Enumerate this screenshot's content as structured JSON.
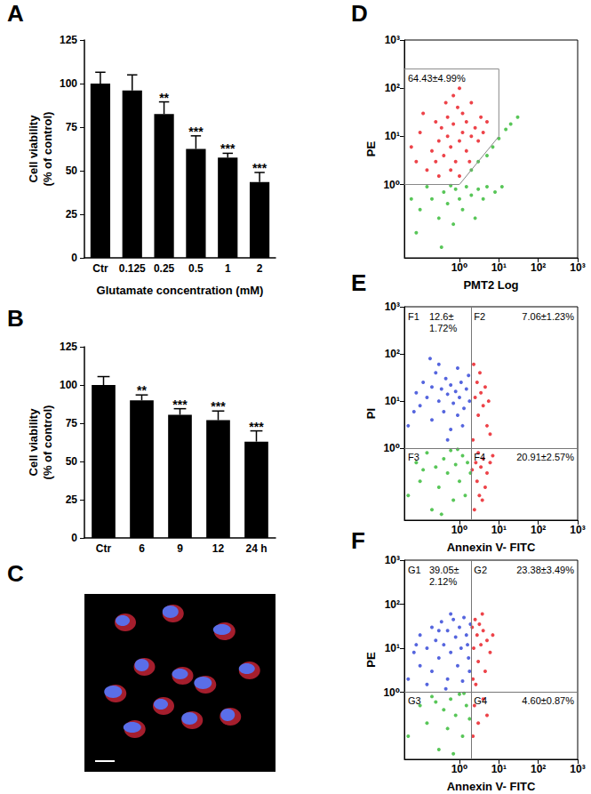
{
  "chart_data": [
    {
      "type": "bar",
      "panel": "A",
      "categories": [
        "Ctr",
        "0.125",
        "0.25",
        "0.5",
        "1",
        "2"
      ],
      "values": [
        100,
        96,
        82.5,
        62.5,
        57.5,
        43.5
      ],
      "errors": [
        6.5,
        9,
        7,
        7.5,
        2.5,
        5.5
      ],
      "annotations": [
        null,
        null,
        "**",
        "***",
        "***",
        "***"
      ],
      "x_label": "Glutamate concentration (mM)",
      "y_label": "Cell viability\n(% of control)",
      "color": "#000000",
      "ylim": [
        0,
        125
      ],
      "yticks": [
        0,
        25,
        50,
        75,
        100,
        125
      ],
      "grid": false
    },
    {
      "type": "bar",
      "panel": "B",
      "categories": [
        "Ctr",
        "6",
        "9",
        "12",
        "24 h"
      ],
      "values": [
        100,
        90,
        80.5,
        77,
        63
      ],
      "errors": [
        5.5,
        3.5,
        4,
        6,
        7
      ],
      "annotations": [
        null,
        "**",
        "***",
        "***",
        "***"
      ],
      "y_label": "Cell viability\n(% of control)",
      "color": "#000000",
      "ylim": [
        0,
        125
      ],
      "yticks": [
        0,
        25,
        50,
        75,
        100,
        125
      ],
      "grid": false
    },
    {
      "type": "image",
      "panel": "C"
    },
    {
      "type": "scatter",
      "panel": "D",
      "log": true,
      "x_label": "PMT2 Log",
      "y_label": "PE",
      "xlim": [
        0.04,
        1000
      ],
      "ylim": [
        0.03,
        1000
      ],
      "xticks": [
        {
          "value": 1,
          "label": "10⁰"
        },
        {
          "value": 10,
          "label": "10¹"
        },
        {
          "value": 100,
          "label": "10²"
        },
        {
          "value": 1000,
          "label": "10³"
        }
      ],
      "yticks": [
        {
          "value": 1,
          "label": "10⁰"
        },
        {
          "value": 10,
          "label": "10¹"
        },
        {
          "value": 100,
          "label": "10²"
        },
        {
          "value": 1000,
          "label": "10³"
        }
      ],
      "gate": {
        "label": "64.43±4.99%",
        "polygon": [
          [
            0.04,
            1
          ],
          [
            0.04,
            250
          ],
          [
            10,
            250
          ],
          [
            10,
            10
          ],
          [
            1,
            1
          ]
        ]
      },
      "series": [
        {
          "color": "#e8141c",
          "values": [
            [
              0.15,
              2
            ],
            [
              0.2,
              5
            ],
            [
              0.25,
              3
            ],
            [
              0.3,
              8
            ],
            [
              0.35,
              15
            ],
            [
              0.4,
              4
            ],
            [
              0.5,
              10
            ],
            [
              0.5,
              25
            ],
            [
              0.6,
              6
            ],
            [
              0.7,
              18
            ],
            [
              0.8,
              3
            ],
            [
              0.9,
              40
            ],
            [
              1,
              8
            ],
            [
              1.2,
              12
            ],
            [
              1.2,
              30
            ],
            [
              1.5,
              5
            ],
            [
              1.5,
              20
            ],
            [
              2,
              10
            ],
            [
              2,
              50
            ],
            [
              2.5,
              15
            ],
            [
              3,
              8
            ],
            [
              0.3,
              1.5
            ],
            [
              0.6,
              2
            ],
            [
              1,
              1.5
            ],
            [
              1.8,
              3
            ],
            [
              0.45,
              50
            ],
            [
              0.7,
              70
            ],
            [
              0.25,
              20
            ],
            [
              3.5,
              25
            ],
            [
              5,
              20
            ],
            [
              4,
              12
            ],
            [
              1,
              100
            ],
            [
              0.08,
              3
            ],
            [
              0.1,
              12
            ],
            [
              0.06,
              6
            ],
            [
              0.12,
              30
            ]
          ]
        },
        {
          "color": "#2eb82e",
          "values": [
            [
              0.1,
              0.3
            ],
            [
              0.2,
              0.5
            ],
            [
              0.3,
              0.2
            ],
            [
              0.4,
              0.7
            ],
            [
              0.5,
              0.4
            ],
            [
              0.7,
              0.15
            ],
            [
              0.8,
              0.8
            ],
            [
              1,
              0.5
            ],
            [
              1.2,
              0.3
            ],
            [
              1.5,
              0.9
            ],
            [
              2,
              0.6
            ],
            [
              2.5,
              0.2
            ],
            [
              3,
              0.8
            ],
            [
              4,
              0.5
            ],
            [
              5,
              0.9
            ],
            [
              2,
              2
            ],
            [
              3,
              3
            ],
            [
              5,
              4
            ],
            [
              7,
              6
            ],
            [
              10,
              9
            ],
            [
              15,
              14
            ],
            [
              20,
              18
            ],
            [
              30,
              25
            ],
            [
              0.15,
              0.9
            ],
            [
              0.6,
              0.95
            ],
            [
              8,
              0.7
            ],
            [
              12,
              0.9
            ],
            [
              0.06,
              0.5
            ],
            [
              0.08,
              0.1
            ],
            [
              0.35,
              0.05
            ]
          ]
        }
      ]
    },
    {
      "type": "scatter",
      "panel": "E",
      "log": true,
      "x_label": "Annexin V- FITC",
      "y_label": "PI",
      "xlim": [
        0.04,
        1000
      ],
      "ylim": [
        0.03,
        1000
      ],
      "xticks": [
        {
          "value": 1,
          "label": "10⁰"
        },
        {
          "value": 10,
          "label": "10¹"
        },
        {
          "value": 100,
          "label": "10²"
        },
        {
          "value": 1000,
          "label": "10³"
        }
      ],
      "yticks": [
        {
          "value": 1,
          "label": "10⁰"
        },
        {
          "value": 10,
          "label": "10¹"
        },
        {
          "value": 100,
          "label": "10²"
        },
        {
          "value": 1000,
          "label": "10³"
        }
      ],
      "quadrant_x": 2,
      "quadrant_y": 1,
      "quadrants": [
        {
          "name": "F1",
          "text": "12.6±\n1.72%"
        },
        {
          "name": "F2",
          "text": "7.06±1.23%"
        },
        {
          "name": "F3"
        },
        {
          "name": "F4",
          "text": "20.91±2.57%"
        }
      ],
      "series": [
        {
          "color": "#2b3fd6",
          "values": [
            [
              0.05,
              3
            ],
            [
              0.08,
              15
            ],
            [
              0.1,
              8
            ],
            [
              0.12,
              25
            ],
            [
              0.15,
              12
            ],
            [
              0.2,
              4
            ],
            [
              0.2,
              20
            ],
            [
              0.25,
              40
            ],
            [
              0.3,
              10
            ],
            [
              0.35,
              18
            ],
            [
              0.4,
              6
            ],
            [
              0.45,
              30
            ],
            [
              0.5,
              14
            ],
            [
              0.6,
              22
            ],
            [
              0.7,
              9
            ],
            [
              0.8,
              16
            ],
            [
              0.9,
              50
            ],
            [
              1,
              12
            ],
            [
              1.1,
              25
            ],
            [
              1.3,
              7
            ],
            [
              1.5,
              18
            ],
            [
              1.7,
              35
            ],
            [
              0.3,
              60
            ],
            [
              0.6,
              2.5
            ],
            [
              1.2,
              3
            ],
            [
              0.07,
              6
            ],
            [
              0.18,
              80
            ],
            [
              0.5,
              1.5
            ],
            [
              1.8,
              10
            ],
            [
              0.9,
              5
            ]
          ]
        },
        {
          "color": "#e8141c",
          "values": [
            [
              2.2,
              1.5
            ],
            [
              2.5,
              12
            ],
            [
              2.8,
              25
            ],
            [
              3,
              5
            ],
            [
              3.3,
              40
            ],
            [
              3.5,
              15
            ],
            [
              4,
              8
            ],
            [
              4.5,
              20
            ],
            [
              5,
              3
            ],
            [
              2.3,
              60
            ],
            [
              2.6,
              0.5
            ],
            [
              2.8,
              0.2
            ],
            [
              3,
              0.8
            ],
            [
              3.2,
              0.1
            ],
            [
              3.5,
              0.4
            ],
            [
              4,
              0.6
            ],
            [
              4.5,
              0.15
            ],
            [
              5,
              0.3
            ],
            [
              6,
              0.5
            ],
            [
              2.4,
              0.05
            ],
            [
              3.8,
              0.08
            ],
            [
              7,
              0.7
            ],
            [
              2.1,
              0.35
            ],
            [
              5.5,
              10
            ],
            [
              6,
              2
            ]
          ]
        },
        {
          "color": "#2eb82e",
          "values": [
            [
              0.05,
              0.1
            ],
            [
              0.08,
              0.5
            ],
            [
              0.1,
              0.2
            ],
            [
              0.15,
              0.8
            ],
            [
              0.2,
              0.05
            ],
            [
              0.25,
              0.4
            ],
            [
              0.3,
              0.15
            ],
            [
              0.4,
              0.6
            ],
            [
              0.5,
              0.3
            ],
            [
              0.6,
              0.9
            ],
            [
              0.7,
              0.08
            ],
            [
              0.8,
              0.45
            ],
            [
              1,
              0.2
            ],
            [
              1.2,
              0.7
            ],
            [
              1.4,
              0.1
            ],
            [
              1.6,
              0.5
            ],
            [
              1.9,
              0.3
            ],
            [
              0.35,
              0.04
            ],
            [
              0.9,
              0.95
            ],
            [
              0.12,
              0.35
            ]
          ]
        }
      ]
    },
    {
      "type": "scatter",
      "panel": "F",
      "log": true,
      "x_label": "Annexin V- FITC",
      "y_label": "PE",
      "xlim": [
        0.04,
        1000
      ],
      "ylim": [
        0.03,
        1000
      ],
      "xticks": [
        {
          "value": 1,
          "label": "10⁰"
        },
        {
          "value": 10,
          "label": "10¹"
        },
        {
          "value": 100,
          "label": "10²"
        },
        {
          "value": 1000,
          "label": "10³"
        }
      ],
      "yticks": [
        {
          "value": 1,
          "label": "10⁰"
        },
        {
          "value": 10,
          "label": "10¹"
        },
        {
          "value": 100,
          "label": "10²"
        },
        {
          "value": 1000,
          "label": "10³"
        }
      ],
      "quadrant_x": 2,
      "quadrant_y": 1,
      "quadrants": [
        {
          "name": "G1",
          "text": "39.05±\n2.12%"
        },
        {
          "name": "G2",
          "text": "23.38±3.49%"
        },
        {
          "name": "G3"
        },
        {
          "name": "G4",
          "text": "4.60±0.87%"
        }
      ],
      "series": [
        {
          "color": "#2b3fd6",
          "values": [
            [
              0.05,
              2
            ],
            [
              0.07,
              8
            ],
            [
              0.1,
              4
            ],
            [
              0.1,
              20
            ],
            [
              0.15,
              10
            ],
            [
              0.2,
              3
            ],
            [
              0.2,
              30
            ],
            [
              0.25,
              15
            ],
            [
              0.3,
              6
            ],
            [
              0.35,
              40
            ],
            [
              0.4,
              12
            ],
            [
              0.5,
              25
            ],
            [
              0.5,
              2
            ],
            [
              0.6,
              8
            ],
            [
              0.7,
              45
            ],
            [
              0.8,
              18
            ],
            [
              0.9,
              4
            ],
            [
              1,
              30
            ],
            [
              1.1,
              10
            ],
            [
              1.3,
              50
            ],
            [
              1.5,
              20
            ],
            [
              1.7,
              6
            ],
            [
              1.9,
              35
            ],
            [
              0.15,
              1.5
            ],
            [
              0.45,
              1.2
            ],
            [
              1.2,
              1.8
            ],
            [
              0.08,
              12
            ],
            [
              0.6,
              60
            ],
            [
              1.6,
              12
            ],
            [
              0.3,
              25
            ],
            [
              1.8,
              3
            ]
          ]
        },
        {
          "color": "#e8141c",
          "values": [
            [
              2.1,
              30
            ],
            [
              2.3,
              10
            ],
            [
              2.5,
              45
            ],
            [
              2.8,
              20
            ],
            [
              3,
              5
            ],
            [
              3.2,
              35
            ],
            [
              3.5,
              12
            ],
            [
              4,
              25
            ],
            [
              4.5,
              3
            ],
            [
              5,
              15
            ],
            [
              6,
              8
            ],
            [
              2.2,
              2
            ],
            [
              2.6,
              1.5
            ],
            [
              3.8,
              60
            ],
            [
              7,
              20
            ],
            [
              2.4,
              0.5
            ],
            [
              3,
              0.2
            ],
            [
              4,
              0.7
            ],
            [
              5,
              0.3
            ],
            [
              2.2,
              0.1
            ]
          ]
        },
        {
          "color": "#2eb82e",
          "values": [
            [
              0.05,
              0.1
            ],
            [
              0.1,
              0.5
            ],
            [
              0.15,
              0.2
            ],
            [
              0.2,
              0.8
            ],
            [
              0.3,
              0.05
            ],
            [
              0.4,
              0.4
            ],
            [
              0.5,
              0.15
            ],
            [
              0.6,
              0.7
            ],
            [
              0.8,
              0.3
            ],
            [
              1,
              0.9
            ],
            [
              1.2,
              0.1
            ],
            [
              1.5,
              0.5
            ],
            [
              1.8,
              0.25
            ],
            [
              0.25,
              0.6
            ],
            [
              0.7,
              0.04
            ],
            [
              1.3,
              0.95
            ]
          ]
        }
      ]
    }
  ]
}
